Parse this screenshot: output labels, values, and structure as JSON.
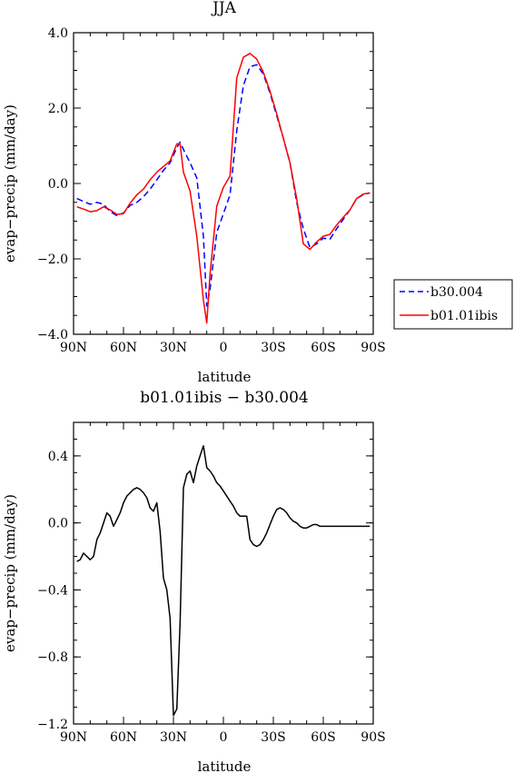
{
  "chart_data": [
    {
      "type": "line",
      "title": "JJA",
      "xlabel": "latitude",
      "ylabel": "evap−precip (mm/day)",
      "xlim": [
        90,
        -90
      ],
      "ylim": [
        -4.0,
        4.0
      ],
      "xticks": [
        90,
        60,
        30,
        0,
        -30,
        -60,
        -90
      ],
      "xtick_labels": [
        "90N",
        "60N",
        "30N",
        "0",
        "30S",
        "60S",
        "90S"
      ],
      "yticks": [
        4.0,
        2.0,
        0.0,
        -2.0,
        -4.0
      ],
      "ytick_labels": [
        "4.0",
        "2.0",
        "0.0",
        "−2.0",
        "−4.0"
      ],
      "grid": false,
      "legend": "outside-right",
      "series": [
        {
          "name": "b30.004",
          "color": "#0000ff",
          "dash": "dashed",
          "x": [
            88,
            84,
            80,
            76,
            72,
            68,
            64,
            60,
            56,
            52,
            48,
            44,
            40,
            36,
            32,
            28,
            26,
            24,
            20,
            16,
            12,
            10,
            8,
            4,
            0,
            -4,
            -8,
            -12,
            -16,
            -20,
            -24,
            -28,
            -32,
            -36,
            -40,
            -44,
            -48,
            -52,
            -56,
            -60,
            -64,
            -68,
            -72,
            -76,
            -80,
            -84,
            -88
          ],
          "y": [
            -0.4,
            -0.48,
            -0.55,
            -0.5,
            -0.55,
            -0.75,
            -0.85,
            -0.78,
            -0.58,
            -0.5,
            -0.35,
            -0.15,
            0.1,
            0.35,
            0.55,
            0.95,
            1.1,
            0.9,
            0.55,
            0.15,
            -1.4,
            -3.25,
            -2.8,
            -1.3,
            -0.8,
            -0.3,
            1.4,
            2.6,
            3.1,
            3.15,
            2.9,
            2.4,
            1.8,
            1.2,
            0.55,
            -0.5,
            -1.2,
            -1.7,
            -1.6,
            -1.45,
            -1.48,
            -1.2,
            -0.95,
            -0.7,
            -0.4,
            -0.3,
            -0.25
          ]
        },
        {
          "name": "b01.01ibis",
          "color": "#ff0000",
          "dash": "solid",
          "x": [
            88,
            84,
            80,
            76,
            72,
            68,
            64,
            60,
            56,
            52,
            48,
            44,
            40,
            36,
            32,
            28,
            26,
            24,
            20,
            16,
            12,
            10,
            8,
            4,
            0,
            -4,
            -8,
            -12,
            -16,
            -20,
            -24,
            -28,
            -32,
            -36,
            -40,
            -44,
            -48,
            -52,
            -56,
            -60,
            -64,
            -68,
            -72,
            -76,
            -80,
            -84,
            -88
          ],
          "y": [
            -0.62,
            -0.68,
            -0.75,
            -0.72,
            -0.62,
            -0.7,
            -0.82,
            -0.8,
            -0.52,
            -0.3,
            -0.15,
            0.1,
            0.3,
            0.45,
            0.6,
            1.05,
            1.05,
            0.3,
            -0.2,
            -1.4,
            -3.1,
            -3.7,
            -2.4,
            -0.6,
            -0.1,
            0.2,
            2.8,
            3.35,
            3.45,
            3.3,
            2.95,
            2.45,
            1.85,
            1.2,
            0.55,
            -0.4,
            -1.6,
            -1.75,
            -1.55,
            -1.4,
            -1.35,
            -1.1,
            -0.9,
            -0.7,
            -0.4,
            -0.28,
            -0.25
          ]
        }
      ]
    },
    {
      "type": "line",
      "title": "b01.01ibis − b30.004",
      "xlabel": "latitude",
      "ylabel": "evap−precip (mm/day)",
      "xlim": [
        90,
        -90
      ],
      "ylim": [
        -1.2,
        0.6
      ],
      "xticks": [
        90,
        60,
        30,
        0,
        -30,
        -60,
        -90
      ],
      "xtick_labels": [
        "90N",
        "60N",
        "30N",
        "0",
        "30S",
        "60S",
        "90S"
      ],
      "yticks": [
        0.4,
        0.0,
        -0.4,
        -0.8,
        -1.2
      ],
      "ytick_labels": [
        "0.4",
        "0.0",
        "−0.4",
        "−0.8",
        "−1.2"
      ],
      "grid": false,
      "series": [
        {
          "color": "#000000",
          "dash": "solid",
          "x": [
            88,
            86,
            84,
            82,
            80,
            78,
            76,
            74,
            72,
            70,
            68,
            66,
            64,
            62,
            60,
            58,
            56,
            54,
            52,
            50,
            48,
            46,
            44,
            42,
            40,
            38,
            36,
            34,
            32,
            30,
            28,
            26,
            24,
            22,
            20,
            18,
            16,
            14,
            12,
            10,
            8,
            6,
            4,
            2,
            0,
            -2,
            -4,
            -6,
            -8,
            -10,
            -12,
            -14,
            -16,
            -18,
            -20,
            -22,
            -24,
            -26,
            -28,
            -30,
            -32,
            -34,
            -36,
            -38,
            -40,
            -42,
            -44,
            -46,
            -48,
            -50,
            -52,
            -54,
            -56,
            -58,
            -60,
            -62,
            -64,
            -66,
            -68,
            -70,
            -72,
            -74,
            -76,
            -78,
            -80,
            -82,
            -84,
            -86,
            -88
          ],
          "y": [
            -0.23,
            -0.22,
            -0.18,
            -0.2,
            -0.22,
            -0.2,
            -0.1,
            -0.06,
            0.0,
            0.06,
            0.04,
            -0.02,
            0.02,
            0.06,
            0.12,
            0.16,
            0.18,
            0.2,
            0.21,
            0.2,
            0.18,
            0.15,
            0.09,
            0.07,
            0.12,
            -0.05,
            -0.33,
            -0.4,
            -0.57,
            -1.15,
            -1.11,
            -0.6,
            0.21,
            0.29,
            0.31,
            0.24,
            0.34,
            0.4,
            0.46,
            0.33,
            0.31,
            0.28,
            0.24,
            0.22,
            0.19,
            0.16,
            0.13,
            0.1,
            0.06,
            0.04,
            0.04,
            0.04,
            -0.1,
            -0.13,
            -0.14,
            -0.13,
            -0.1,
            -0.06,
            -0.01,
            0.04,
            0.08,
            0.09,
            0.08,
            0.06,
            0.03,
            0.01,
            0.0,
            -0.02,
            -0.03,
            -0.03,
            -0.02,
            -0.01,
            -0.01,
            -0.02,
            -0.02,
            -0.02,
            -0.02,
            -0.02,
            -0.02,
            -0.02,
            -0.02,
            -0.02,
            -0.02,
            -0.02,
            -0.02,
            -0.02,
            -0.02,
            -0.02,
            -0.02
          ]
        }
      ]
    }
  ]
}
